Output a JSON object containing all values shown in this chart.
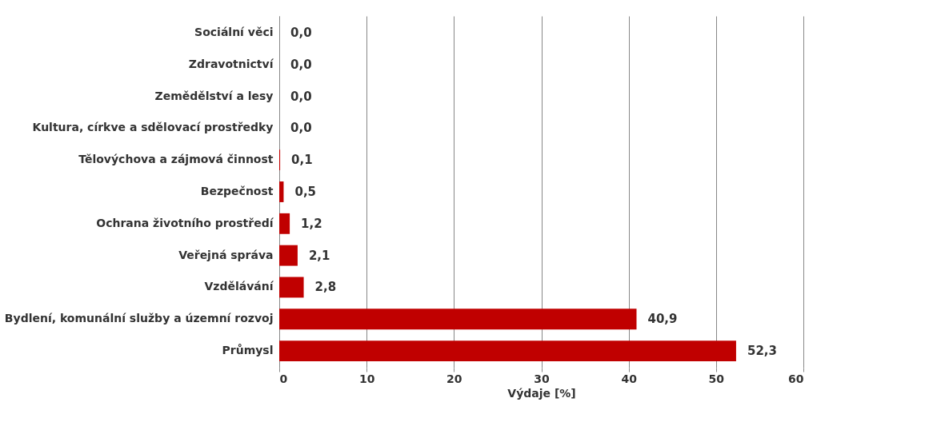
{
  "chart_data": {
    "type": "bar",
    "orientation": "horizontal",
    "xlabel": "Výdaje [%]",
    "categories": [
      "Sociální věci",
      "Zdravotnictví",
      "Zemědělství a lesy",
      "Kultura, církve a sdělovací prostředky",
      "Tělovýchova a zájmová činnost",
      "Bezpečnost",
      "Ochrana životního prostředí",
      "Veřejná správa",
      "Vzdělávání",
      "Bydlení, komunální služby a územní rozvoj",
      "Průmysl"
    ],
    "values": [
      0.0,
      0.0,
      0.0,
      0.0,
      0.1,
      0.5,
      1.2,
      2.1,
      2.8,
      40.9,
      52.3
    ],
    "value_labels": [
      "0,0",
      "0,0",
      "0,0",
      "0,0",
      "0,1",
      "0,5",
      "1,2",
      "2,1",
      "2,8",
      "40,9",
      "52,3"
    ],
    "color": "#c00000",
    "xlim": [
      0,
      60
    ],
    "xticks": [
      0,
      10,
      20,
      30,
      40,
      50,
      60
    ],
    "grid": "x"
  }
}
